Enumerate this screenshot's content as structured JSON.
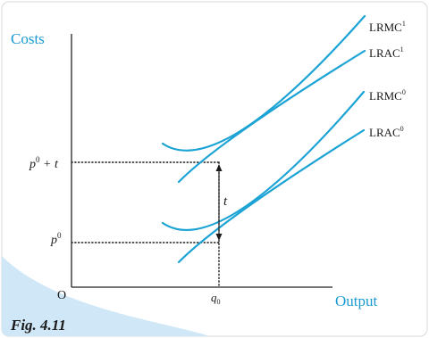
{
  "axes": {
    "y_label": "Costs",
    "x_label": "Output",
    "origin_label": "O"
  },
  "ticks": {
    "y_upper": {
      "base": "p",
      "sup": "0",
      "tail": " + t"
    },
    "y_lower": {
      "base": "p",
      "sup": "0"
    },
    "x_q": {
      "base": "q",
      "sub": "0"
    }
  },
  "gap_label": "t",
  "curves": [
    {
      "base": "LRMC",
      "sup": "1"
    },
    {
      "base": "LRAC",
      "sup": "1"
    },
    {
      "base": "LRMC",
      "sup": "0"
    },
    {
      "base": "LRAC",
      "sup": "0"
    }
  ],
  "figure_caption": "Fig. 4.11",
  "colors": {
    "curve": "#1aa3d4",
    "axis": "#222222",
    "accent_text": "#1a9ad2",
    "text": "#1a1a1a",
    "wedge": "#cfe7f6"
  }
}
